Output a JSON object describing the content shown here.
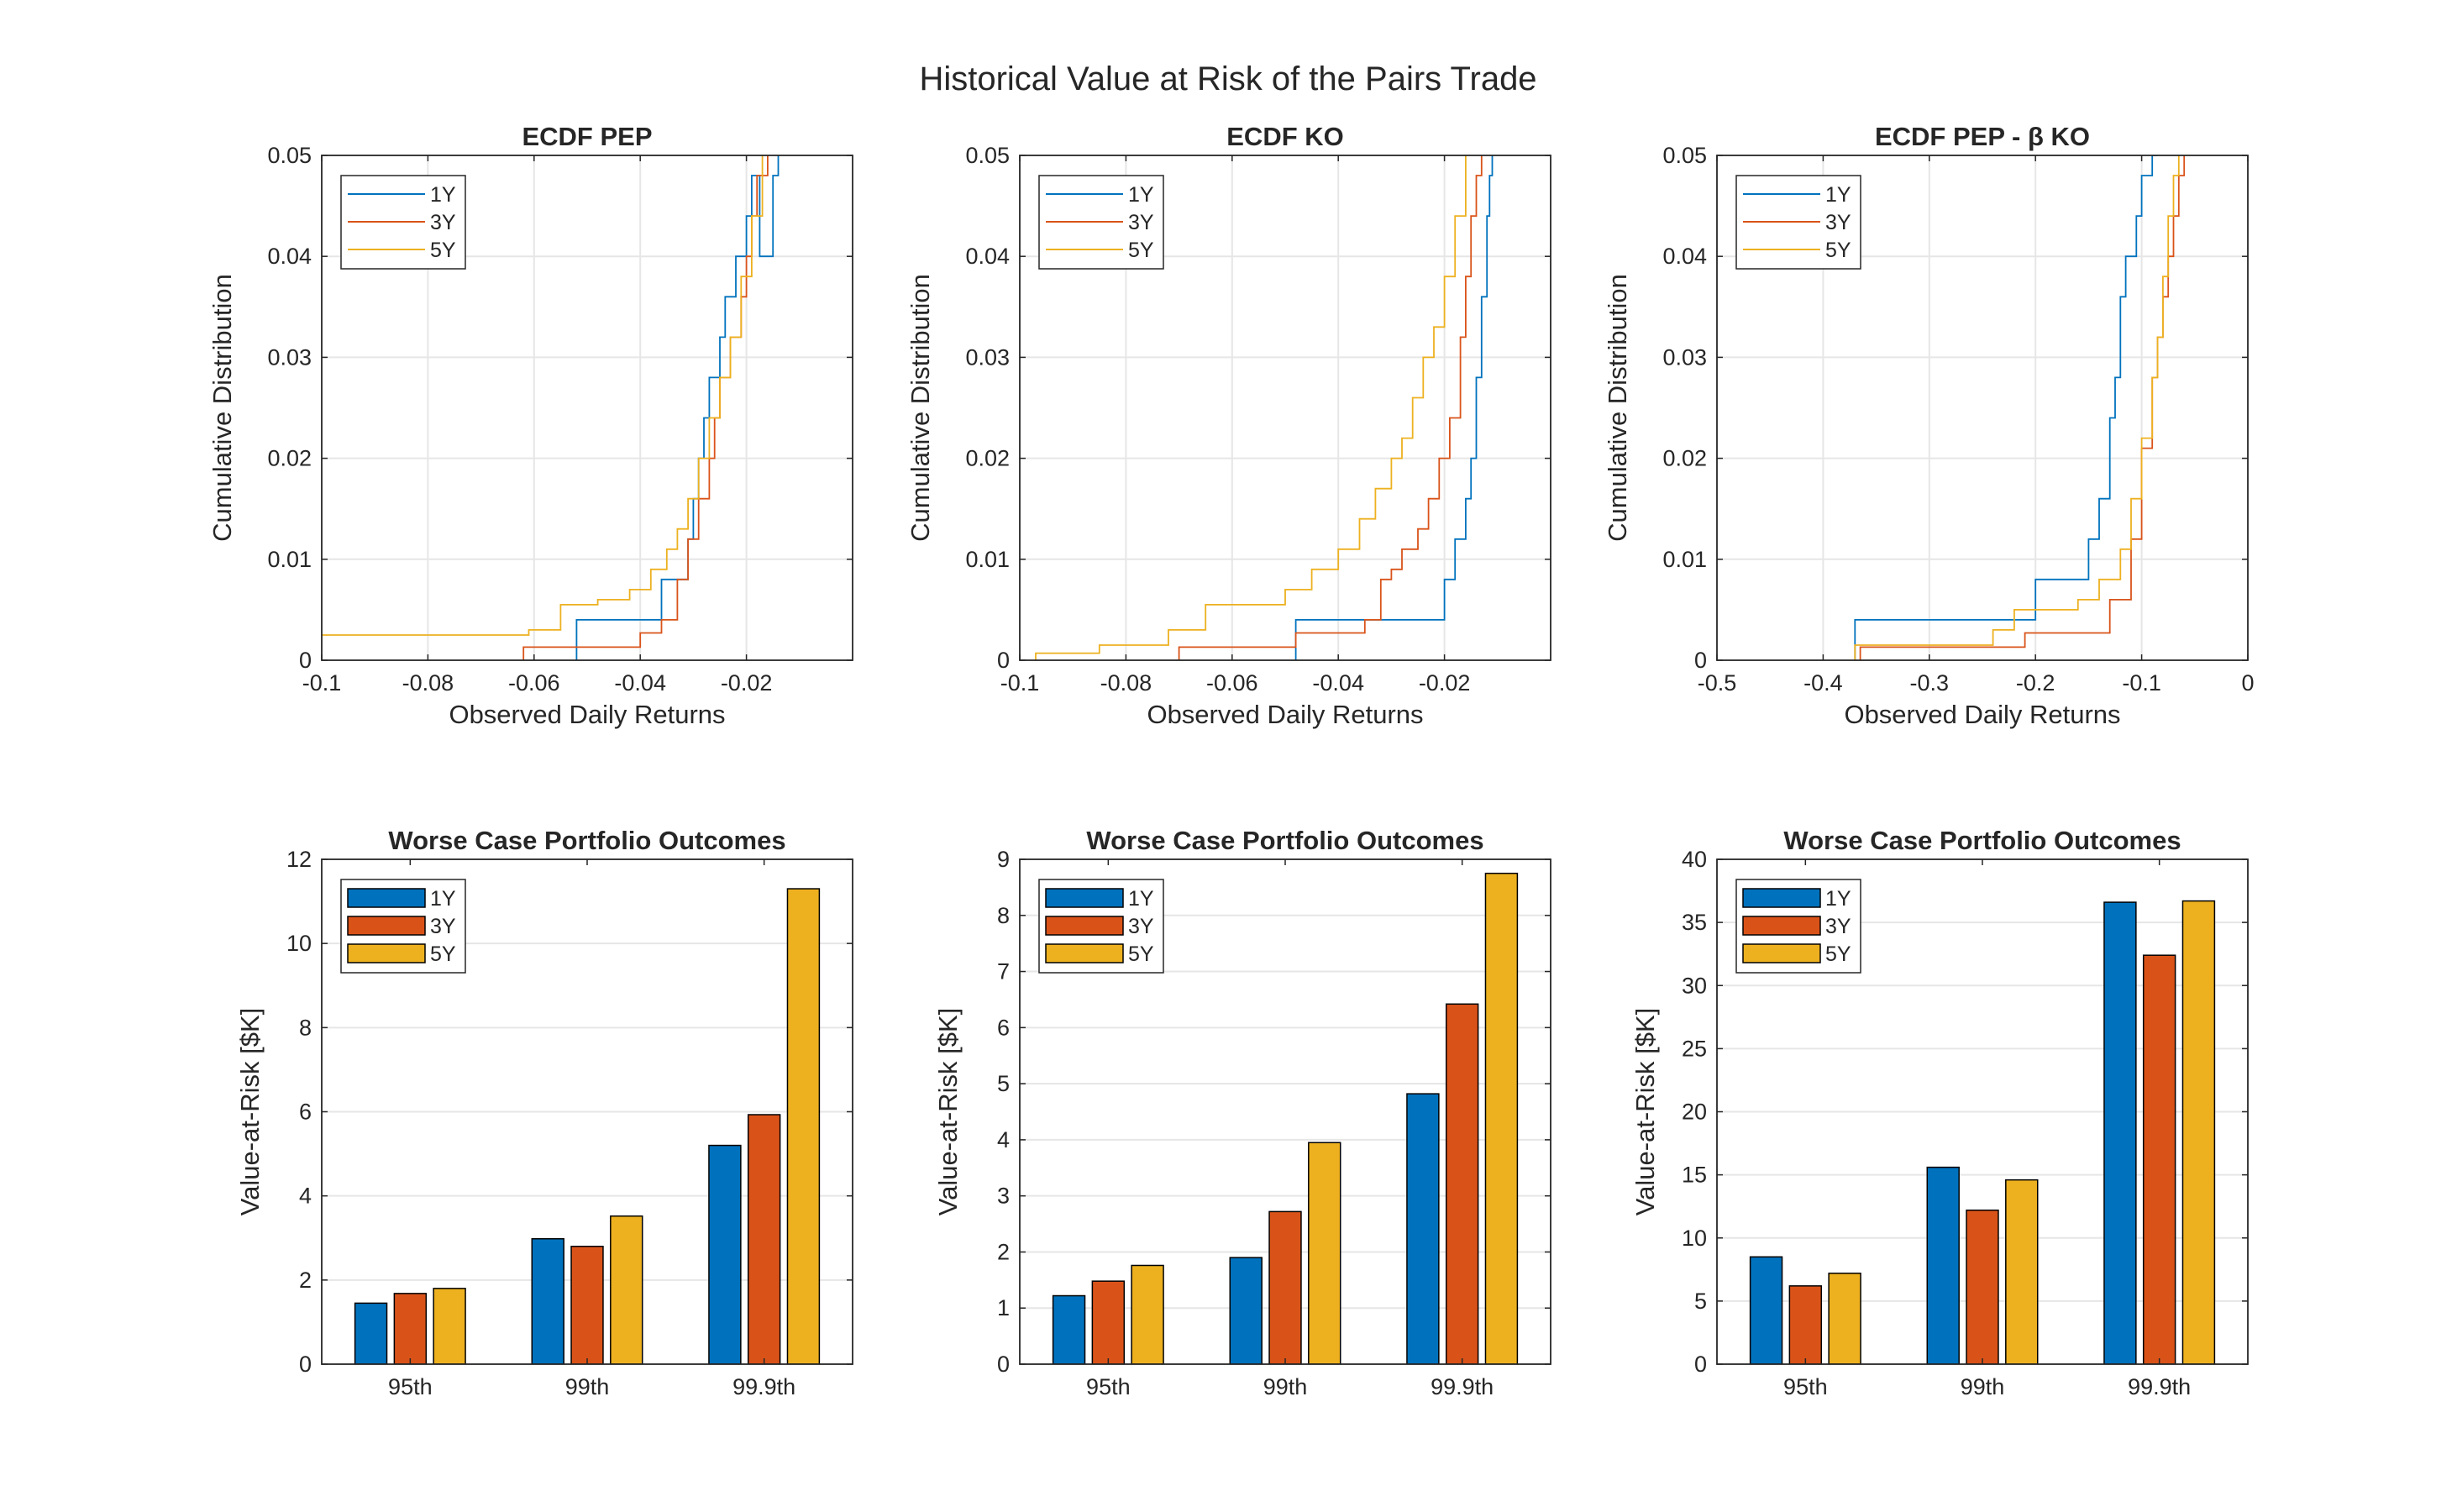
{
  "figure": {
    "title": "Historical Value at Risk of the Pairs Trade"
  },
  "colors": {
    "1Y": "#0072BD",
    "3Y": "#D95319",
    "5Y": "#EDB120"
  },
  "chart_data": [
    {
      "type": "line",
      "subtype": "stairs",
      "title": "ECDF PEP",
      "xlabel": "Observed Daily Returns",
      "ylabel": "Cumulative Distribution",
      "xlim": [
        -0.1,
        0
      ],
      "ylim": [
        0,
        0.05
      ],
      "xticks": [
        -0.1,
        -0.08,
        -0.06,
        -0.04,
        -0.02
      ],
      "xtick_labels": [
        "-0.1",
        "-0.08",
        "-0.06",
        "-0.04",
        "-0.02"
      ],
      "yticks": [
        0,
        0.01,
        0.02,
        0.03,
        0.04,
        0.05
      ],
      "ytick_labels": [
        "0",
        "0.01",
        "0.02",
        "0.03",
        "0.04",
        "0.05"
      ],
      "grid": true,
      "legend": "top-left",
      "series": [
        {
          "name": "1Y",
          "x": [
            -0.052,
            -0.052,
            -0.036,
            -0.036,
            -0.031,
            -0.031,
            -0.03,
            -0.03,
            -0.029,
            -0.029,
            -0.028,
            -0.028,
            -0.027,
            -0.027,
            -0.025,
            -0.025,
            -0.024,
            -0.024,
            -0.022,
            -0.022,
            -0.02,
            -0.02,
            -0.019,
            -0.019,
            -0.0175,
            -0.0175,
            -0.015,
            -0.015,
            -0.014,
            -0.014
          ],
          "y": [
            0,
            0.004,
            0.004,
            0.008,
            0.008,
            0.012,
            0.012,
            0.016,
            0.016,
            0.02,
            0.02,
            0.024,
            0.024,
            0.028,
            0.028,
            0.032,
            0.032,
            0.036,
            0.036,
            0.04,
            0.04,
            0.044,
            0.044,
            0.048,
            0.048,
            0.04,
            0.04,
            0.048,
            0.048,
            0.05
          ]
        },
        {
          "name": "3Y",
          "x": [
            -0.062,
            -0.062,
            -0.04,
            -0.04,
            -0.036,
            -0.036,
            -0.033,
            -0.033,
            -0.031,
            -0.031,
            -0.029,
            -0.029,
            -0.027,
            -0.027,
            -0.026,
            -0.026,
            -0.025,
            -0.025,
            -0.023,
            -0.023,
            -0.021,
            -0.021,
            -0.02,
            -0.02,
            -0.019,
            -0.019,
            -0.018,
            -0.018,
            -0.016,
            -0.016
          ],
          "y": [
            0,
            0.0013,
            0.0013,
            0.0027,
            0.0027,
            0.004,
            0.004,
            0.008,
            0.008,
            0.012,
            0.012,
            0.016,
            0.016,
            0.02,
            0.02,
            0.024,
            0.024,
            0.028,
            0.028,
            0.032,
            0.032,
            0.036,
            0.036,
            0.04,
            0.04,
            0.044,
            0.044,
            0.048,
            0.048,
            0.05
          ]
        },
        {
          "name": "5Y",
          "x": [
            -0.1,
            -0.061,
            -0.061,
            -0.055,
            -0.055,
            -0.048,
            -0.048,
            -0.042,
            -0.042,
            -0.038,
            -0.038,
            -0.035,
            -0.035,
            -0.033,
            -0.033,
            -0.031,
            -0.031,
            -0.029,
            -0.029,
            -0.027,
            -0.027,
            -0.025,
            -0.025,
            -0.023,
            -0.023,
            -0.021,
            -0.021,
            -0.019,
            -0.019,
            -0.017,
            -0.017
          ],
          "y": [
            0.0025,
            0.0025,
            0.003,
            0.003,
            0.0055,
            0.0055,
            0.006,
            0.006,
            0.007,
            0.007,
            0.009,
            0.009,
            0.011,
            0.011,
            0.013,
            0.013,
            0.016,
            0.016,
            0.02,
            0.02,
            0.024,
            0.024,
            0.028,
            0.028,
            0.032,
            0.032,
            0.038,
            0.038,
            0.044,
            0.044,
            0.05
          ]
        }
      ]
    },
    {
      "type": "line",
      "subtype": "stairs",
      "title": "ECDF KO",
      "xlabel": "Observed Daily Returns",
      "ylabel": "Cumulative Distribution",
      "xlim": [
        -0.1,
        0
      ],
      "ylim": [
        0,
        0.05
      ],
      "xticks": [
        -0.1,
        -0.08,
        -0.06,
        -0.04,
        -0.02
      ],
      "xtick_labels": [
        "-0.1",
        "-0.08",
        "-0.06",
        "-0.04",
        "-0.02"
      ],
      "yticks": [
        0,
        0.01,
        0.02,
        0.03,
        0.04,
        0.05
      ],
      "ytick_labels": [
        "0",
        "0.01",
        "0.02",
        "0.03",
        "0.04",
        "0.05"
      ],
      "grid": true,
      "legend": "top-left",
      "series": [
        {
          "name": "1Y",
          "x": [
            -0.048,
            -0.048,
            -0.02,
            -0.02,
            -0.018,
            -0.018,
            -0.016,
            -0.016,
            -0.015,
            -0.015,
            -0.014,
            -0.014,
            -0.013,
            -0.013,
            -0.012,
            -0.012,
            -0.0115,
            -0.0115,
            -0.011,
            -0.011
          ],
          "y": [
            0,
            0.004,
            0.004,
            0.008,
            0.008,
            0.012,
            0.012,
            0.016,
            0.016,
            0.02,
            0.02,
            0.028,
            0.028,
            0.036,
            0.036,
            0.044,
            0.044,
            0.048,
            0.048,
            0.05
          ]
        },
        {
          "name": "3Y",
          "x": [
            -0.07,
            -0.07,
            -0.048,
            -0.048,
            -0.035,
            -0.035,
            -0.032,
            -0.032,
            -0.03,
            -0.03,
            -0.028,
            -0.028,
            -0.025,
            -0.025,
            -0.023,
            -0.023,
            -0.021,
            -0.021,
            -0.019,
            -0.019,
            -0.017,
            -0.017,
            -0.016,
            -0.016,
            -0.015,
            -0.015,
            -0.014,
            -0.014,
            -0.013,
            -0.013
          ],
          "y": [
            0,
            0.0013,
            0.0013,
            0.0027,
            0.0027,
            0.004,
            0.004,
            0.008,
            0.008,
            0.009,
            0.009,
            0.011,
            0.011,
            0.013,
            0.013,
            0.016,
            0.016,
            0.02,
            0.02,
            0.024,
            0.024,
            0.032,
            0.032,
            0.038,
            0.038,
            0.044,
            0.044,
            0.048,
            0.048,
            0.05
          ]
        },
        {
          "name": "5Y",
          "x": [
            -0.097,
            -0.097,
            -0.085,
            -0.085,
            -0.072,
            -0.072,
            -0.065,
            -0.065,
            -0.05,
            -0.05,
            -0.045,
            -0.045,
            -0.04,
            -0.04,
            -0.036,
            -0.036,
            -0.033,
            -0.033,
            -0.03,
            -0.03,
            -0.028,
            -0.028,
            -0.026,
            -0.026,
            -0.024,
            -0.024,
            -0.022,
            -0.022,
            -0.02,
            -0.02,
            -0.018,
            -0.018,
            -0.016,
            -0.016
          ],
          "y": [
            0,
            0.0007,
            0.0007,
            0.0015,
            0.0015,
            0.003,
            0.003,
            0.0055,
            0.0055,
            0.007,
            0.007,
            0.009,
            0.009,
            0.011,
            0.011,
            0.014,
            0.014,
            0.017,
            0.017,
            0.02,
            0.02,
            0.022,
            0.022,
            0.026,
            0.026,
            0.03,
            0.03,
            0.033,
            0.033,
            0.038,
            0.038,
            0.044,
            0.044,
            0.05
          ]
        }
      ]
    },
    {
      "type": "line",
      "subtype": "stairs",
      "title": "ECDF  PEP  -  β  KO",
      "xlabel": "Observed Daily Returns",
      "ylabel": "Cumulative Distribution",
      "xlim": [
        -0.5,
        0
      ],
      "ylim": [
        0,
        0.05
      ],
      "xticks": [
        -0.5,
        -0.4,
        -0.3,
        -0.2,
        -0.1,
        0
      ],
      "xtick_labels": [
        "-0.5",
        "-0.4",
        "-0.3",
        "-0.2",
        "-0.1",
        "0"
      ],
      "yticks": [
        0,
        0.01,
        0.02,
        0.03,
        0.04,
        0.05
      ],
      "ytick_labels": [
        "0",
        "0.01",
        "0.02",
        "0.03",
        "0.04",
        "0.05"
      ],
      "grid": true,
      "legend": "top-left",
      "series": [
        {
          "name": "1Y",
          "x": [
            -0.37,
            -0.37,
            -0.2,
            -0.2,
            -0.15,
            -0.15,
            -0.14,
            -0.14,
            -0.13,
            -0.13,
            -0.125,
            -0.125,
            -0.12,
            -0.12,
            -0.115,
            -0.115,
            -0.105,
            -0.105,
            -0.1,
            -0.1,
            -0.09,
            -0.09,
            -0.085,
            -0.085
          ],
          "y": [
            0,
            0.004,
            0.004,
            0.008,
            0.008,
            0.012,
            0.012,
            0.016,
            0.016,
            0.024,
            0.024,
            0.028,
            0.028,
            0.036,
            0.036,
            0.04,
            0.04,
            0.044,
            0.044,
            0.048,
            0.048,
            0.05,
            0.05,
            0.05
          ]
        },
        {
          "name": "3Y",
          "x": [
            -0.365,
            -0.365,
            -0.21,
            -0.21,
            -0.13,
            -0.13,
            -0.11,
            -0.11,
            -0.1,
            -0.1,
            -0.09,
            -0.09,
            -0.085,
            -0.085,
            -0.08,
            -0.08,
            -0.075,
            -0.075,
            -0.07,
            -0.07,
            -0.065,
            -0.065,
            -0.06,
            -0.06
          ],
          "y": [
            0,
            0.0013,
            0.0013,
            0.0027,
            0.0027,
            0.006,
            0.006,
            0.012,
            0.012,
            0.021,
            0.021,
            0.028,
            0.028,
            0.032,
            0.032,
            0.036,
            0.036,
            0.04,
            0.04,
            0.044,
            0.044,
            0.048,
            0.048,
            0.05
          ]
        },
        {
          "name": "5Y",
          "x": [
            -0.37,
            -0.37,
            -0.24,
            -0.24,
            -0.22,
            -0.22,
            -0.16,
            -0.16,
            -0.14,
            -0.14,
            -0.12,
            -0.12,
            -0.11,
            -0.11,
            -0.1,
            -0.1,
            -0.09,
            -0.09,
            -0.085,
            -0.085,
            -0.08,
            -0.08,
            -0.075,
            -0.075,
            -0.07,
            -0.07,
            -0.065,
            -0.065
          ],
          "y": [
            0,
            0.0015,
            0.0015,
            0.003,
            0.003,
            0.005,
            0.005,
            0.006,
            0.006,
            0.008,
            0.008,
            0.011,
            0.011,
            0.016,
            0.016,
            0.022,
            0.022,
            0.028,
            0.028,
            0.032,
            0.032,
            0.038,
            0.038,
            0.044,
            0.044,
            0.048,
            0.048,
            0.05
          ]
        }
      ]
    },
    {
      "type": "bar",
      "title": "Worse Case Portfolio Outcomes",
      "xlabel": "",
      "ylabel": "Value-at-Risk [$K]",
      "categories": [
        "95th",
        "99th",
        "99.9th"
      ],
      "ylim": [
        0,
        12
      ],
      "yticks": [
        0,
        2,
        4,
        6,
        8,
        10,
        12
      ],
      "ytick_labels": [
        "0",
        "2",
        "4",
        "6",
        "8",
        "10",
        "12"
      ],
      "grid": true,
      "legend": "top-left",
      "series": [
        {
          "name": "1Y",
          "values": [
            1.45,
            2.98,
            5.2
          ]
        },
        {
          "name": "3Y",
          "values": [
            1.68,
            2.8,
            5.93
          ]
        },
        {
          "name": "5Y",
          "values": [
            1.8,
            3.52,
            11.3
          ]
        }
      ]
    },
    {
      "type": "bar",
      "title": "Worse Case Portfolio Outcomes",
      "xlabel": "",
      "ylabel": "Value-at-Risk [$K]",
      "categories": [
        "95th",
        "99th",
        "99.9th"
      ],
      "ylim": [
        0,
        9
      ],
      "yticks": [
        0,
        1,
        2,
        3,
        4,
        5,
        6,
        7,
        8,
        9
      ],
      "ytick_labels": [
        "0",
        "1",
        "2",
        "3",
        "4",
        "5",
        "6",
        "7",
        "8",
        "9"
      ],
      "grid": true,
      "legend": "top-left",
      "series": [
        {
          "name": "1Y",
          "values": [
            1.22,
            1.9,
            4.82
          ]
        },
        {
          "name": "3Y",
          "values": [
            1.48,
            2.72,
            6.42
          ]
        },
        {
          "name": "5Y",
          "values": [
            1.76,
            3.95,
            8.75
          ]
        }
      ]
    },
    {
      "type": "bar",
      "title": "Worse Case Portfolio Outcomes",
      "xlabel": "",
      "ylabel": "Value-at-Risk [$K]",
      "categories": [
        "95th",
        "99th",
        "99.9th"
      ],
      "ylim": [
        0,
        40
      ],
      "yticks": [
        0,
        5,
        10,
        15,
        20,
        25,
        30,
        35,
        40
      ],
      "ytick_labels": [
        "0",
        "5",
        "10",
        "15",
        "20",
        "25",
        "30",
        "35",
        "40"
      ],
      "grid": true,
      "legend": "top-left",
      "series": [
        {
          "name": "1Y",
          "values": [
            8.5,
            15.6,
            36.6
          ]
        },
        {
          "name": "3Y",
          "values": [
            6.2,
            12.2,
            32.4
          ]
        },
        {
          "name": "5Y",
          "values": [
            7.2,
            14.6,
            36.7
          ]
        }
      ]
    }
  ]
}
